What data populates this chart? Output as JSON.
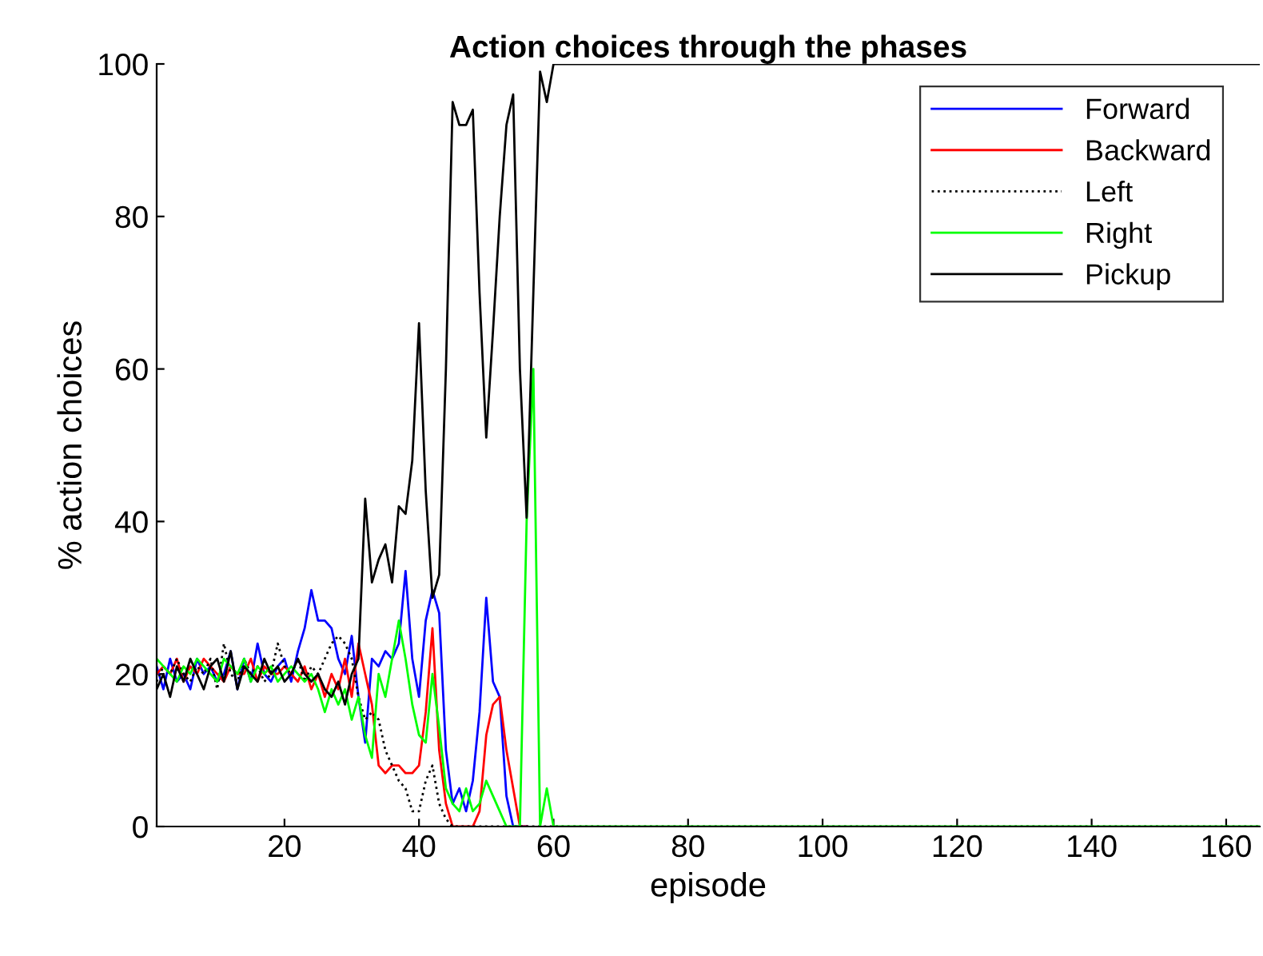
{
  "chart_data": {
    "type": "line",
    "title": "Action choices through the phases",
    "xlabel": "episode",
    "ylabel": "% action choices",
    "x": [
      1,
      2,
      3,
      4,
      5,
      6,
      7,
      8,
      9,
      10,
      11,
      12,
      13,
      14,
      15,
      16,
      17,
      18,
      19,
      20,
      21,
      22,
      23,
      24,
      25,
      26,
      27,
      28,
      29,
      30,
      31,
      32,
      33,
      34,
      35,
      36,
      37,
      38,
      39,
      40,
      41,
      42,
      43,
      44,
      45,
      46,
      47,
      48,
      49,
      50,
      51,
      52,
      53,
      54,
      55,
      56,
      57,
      58,
      59,
      60,
      61,
      62,
      165
    ],
    "series": [
      {
        "name": "Forward",
        "color": "#0000ff",
        "line_style": "solid",
        "values": [
          21,
          18,
          22,
          19,
          20,
          18,
          22,
          20,
          21,
          19,
          20,
          23,
          18,
          22,
          19,
          24,
          20,
          19,
          21,
          22,
          19,
          23,
          26,
          31,
          27,
          27,
          26,
          22,
          20,
          25,
          17,
          11,
          22,
          21,
          23,
          22,
          24,
          33.5,
          22,
          17,
          27,
          31,
          28,
          10,
          3,
          5,
          2,
          6,
          15,
          30,
          19,
          17,
          4,
          0,
          0,
          0,
          null,
          null,
          null,
          null,
          null,
          null,
          null
        ]
      },
      {
        "name": "Backward",
        "color": "#ff0000",
        "line_style": "solid",
        "values": [
          20,
          21,
          20,
          22,
          19,
          21,
          20,
          22,
          21,
          20,
          19,
          21,
          20,
          20,
          22,
          19,
          21,
          20,
          20,
          21,
          20,
          19,
          21,
          18,
          20,
          17,
          20,
          18,
          22,
          17,
          24,
          20,
          16,
          8,
          7,
          8,
          8,
          7,
          7,
          8,
          15,
          26,
          10,
          3,
          0,
          0,
          0,
          0,
          2,
          12,
          16,
          17,
          10,
          5,
          0,
          0,
          null,
          null,
          null,
          null,
          null,
          null,
          null
        ]
      },
      {
        "name": "Left",
        "color": "#000000",
        "line_style": "dotted",
        "values": [
          19,
          21,
          20,
          22,
          20,
          19,
          21,
          20,
          22,
          18,
          24,
          20,
          19,
          22,
          20,
          21,
          19,
          20,
          24,
          21,
          20,
          22,
          19,
          21,
          20,
          22,
          24,
          25,
          24,
          22,
          17,
          14,
          15,
          14,
          10,
          8,
          6,
          5,
          2,
          2,
          6,
          8,
          3,
          1,
          0,
          0,
          0,
          0,
          0,
          0,
          0,
          0,
          0,
          0,
          0,
          0,
          0,
          0,
          0,
          0,
          0,
          0,
          0
        ]
      },
      {
        "name": "Right",
        "color": "#00ff00",
        "line_style": "solid",
        "values": [
          22,
          21,
          20,
          19,
          21,
          20,
          22,
          21,
          20,
          19,
          22,
          21,
          20,
          22,
          19,
          21,
          20,
          21,
          19,
          20,
          21,
          20,
          19,
          20,
          18,
          15,
          18,
          16,
          18,
          14,
          17,
          12,
          9,
          20,
          17,
          22,
          27,
          22,
          16,
          12,
          11,
          20,
          13,
          5,
          3,
          2,
          5,
          2,
          3,
          6,
          4,
          2,
          0,
          0,
          0,
          40,
          60,
          0,
          5,
          0,
          0,
          0,
          0
        ]
      },
      {
        "name": "Pickup",
        "color": "#000000",
        "line_style": "solid",
        "values": [
          18,
          20,
          17,
          21,
          19,
          22,
          20,
          18,
          21,
          22,
          19,
          23,
          18,
          21,
          20,
          19,
          22,
          20,
          21,
          19,
          20,
          22,
          20,
          19,
          20,
          18,
          17,
          19,
          16,
          20,
          22,
          43,
          32,
          35,
          37,
          32,
          42,
          41,
          48,
          66,
          44,
          30,
          33,
          60,
          95,
          92,
          92,
          94,
          70,
          51,
          65,
          80,
          92,
          96,
          60,
          40.5,
          70,
          99,
          95,
          100,
          100,
          100,
          100
        ]
      }
    ],
    "xlim": [
      1,
      165
    ],
    "ylim": [
      0,
      100
    ],
    "xticks": [
      20,
      40,
      60,
      80,
      100,
      120,
      140,
      160
    ],
    "yticks": [
      0,
      20,
      40,
      60,
      80,
      100
    ],
    "grid": false,
    "legend": "top right"
  }
}
